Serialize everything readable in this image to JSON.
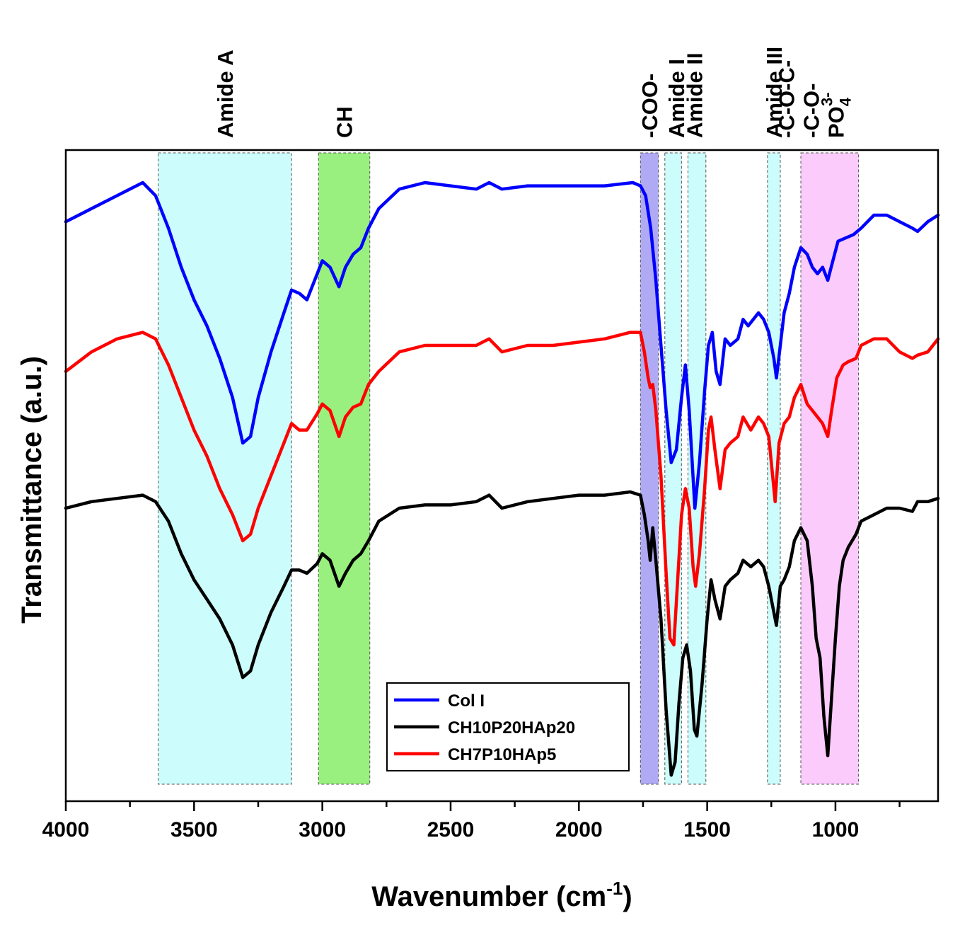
{
  "chart_data": {
    "type": "line",
    "title": "",
    "xlabel": "Wavenumber (cm",
    "xlabel_sup": "-1",
    "xlabel_close": ")",
    "ylabel": "Transmittance (a.u.)",
    "xlim": [
      4000,
      600
    ],
    "ylim": [
      0,
      100
    ],
    "x_ticks": [
      4000,
      3500,
      3000,
      2500,
      2000,
      1500,
      1000
    ],
    "y_ticks_labeled": false,
    "bands": [
      {
        "id": "amide-a",
        "from": 3640,
        "to": 3120,
        "color": "#ccfcfb",
        "label": "Amide A",
        "lines": [
          "Amide A"
        ]
      },
      {
        "id": "ch",
        "from": 3015,
        "to": 2815,
        "color": "#99f07e",
        "label": "CH",
        "lines": [
          "CH"
        ]
      },
      {
        "id": "coo",
        "from": 1760,
        "to": 1690,
        "color": "#b0aaf4",
        "label": "-COO-",
        "lines": [
          "-COO-"
        ]
      },
      {
        "id": "amide-i",
        "from": 1665,
        "to": 1600,
        "color": "#ccfcfb",
        "label": "Amide I",
        "lines": [
          "Amide I"
        ]
      },
      {
        "id": "amide-ii",
        "from": 1575,
        "to": 1505,
        "color": "#ccfcfb",
        "label": "Amide II",
        "lines": [
          "Amide II"
        ]
      },
      {
        "id": "amide-iii",
        "from": 1265,
        "to": 1215,
        "color": "#ccfcfb",
        "label": "Amide III",
        "lines": [
          "Amide III"
        ]
      },
      {
        "id": "ester",
        "from": 1135,
        "to": 910,
        "color": "#fbccfb",
        "label": "-C-O-C- -C-O- PO4 3-",
        "lines": [
          "-C-O-C-",
          "-C-O-"
        ],
        "ion": "PO",
        "ion_sub": "4",
        "ion_sup": "3-"
      }
    ],
    "series": [
      {
        "name": "Col I",
        "color": "#0000ff",
        "points": [
          [
            4000,
            89
          ],
          [
            3900,
            91
          ],
          [
            3800,
            93
          ],
          [
            3700,
            95
          ],
          [
            3650,
            93
          ],
          [
            3600,
            88
          ],
          [
            3550,
            82
          ],
          [
            3500,
            77
          ],
          [
            3450,
            73
          ],
          [
            3400,
            68
          ],
          [
            3350,
            62
          ],
          [
            3310,
            55
          ],
          [
            3280,
            56
          ],
          [
            3250,
            62
          ],
          [
            3200,
            69
          ],
          [
            3150,
            75
          ],
          [
            3120,
            78.5
          ],
          [
            3090,
            78
          ],
          [
            3060,
            77
          ],
          [
            3020,
            81
          ],
          [
            3000,
            83
          ],
          [
            2970,
            82
          ],
          [
            2935,
            79
          ],
          [
            2910,
            82
          ],
          [
            2880,
            84
          ],
          [
            2850,
            85
          ],
          [
            2820,
            88
          ],
          [
            2780,
            91
          ],
          [
            2700,
            94
          ],
          [
            2600,
            95
          ],
          [
            2500,
            94.5
          ],
          [
            2400,
            94
          ],
          [
            2350,
            95
          ],
          [
            2300,
            94
          ],
          [
            2200,
            94.5
          ],
          [
            2100,
            94.5
          ],
          [
            2000,
            94.5
          ],
          [
            1900,
            94.5
          ],
          [
            1790,
            95
          ],
          [
            1760,
            94.5
          ],
          [
            1740,
            93
          ],
          [
            1720,
            88
          ],
          [
            1700,
            80
          ],
          [
            1680,
            70
          ],
          [
            1660,
            60
          ],
          [
            1640,
            52
          ],
          [
            1620,
            54
          ],
          [
            1600,
            62
          ],
          [
            1585,
            67
          ],
          [
            1570,
            60
          ],
          [
            1548,
            45
          ],
          [
            1530,
            52
          ],
          [
            1510,
            63
          ],
          [
            1495,
            70
          ],
          [
            1480,
            72
          ],
          [
            1465,
            66
          ],
          [
            1450,
            64
          ],
          [
            1430,
            71
          ],
          [
            1410,
            70
          ],
          [
            1380,
            71
          ],
          [
            1360,
            74
          ],
          [
            1340,
            73
          ],
          [
            1320,
            74
          ],
          [
            1300,
            75
          ],
          [
            1280,
            74
          ],
          [
            1260,
            72
          ],
          [
            1240,
            68
          ],
          [
            1230,
            65
          ],
          [
            1215,
            70
          ],
          [
            1200,
            75
          ],
          [
            1180,
            78
          ],
          [
            1160,
            82
          ],
          [
            1135,
            85
          ],
          [
            1110,
            84
          ],
          [
            1090,
            82
          ],
          [
            1070,
            81
          ],
          [
            1050,
            82
          ],
          [
            1030,
            80
          ],
          [
            1010,
            83
          ],
          [
            990,
            86
          ],
          [
            960,
            86.5
          ],
          [
            930,
            87
          ],
          [
            900,
            88
          ],
          [
            850,
            90
          ],
          [
            800,
            90
          ],
          [
            750,
            89
          ],
          [
            700,
            88
          ],
          [
            680,
            87.5
          ],
          [
            640,
            89
          ],
          [
            600,
            90
          ]
        ]
      },
      {
        "name": "CH10P20HAp20",
        "color": "#000000",
        "points": [
          [
            4000,
            45
          ],
          [
            3900,
            46
          ],
          [
            3800,
            46.5
          ],
          [
            3700,
            47
          ],
          [
            3650,
            46
          ],
          [
            3600,
            43
          ],
          [
            3550,
            38
          ],
          [
            3500,
            34
          ],
          [
            3450,
            31
          ],
          [
            3400,
            28
          ],
          [
            3350,
            24
          ],
          [
            3310,
            19
          ],
          [
            3280,
            20
          ],
          [
            3250,
            24
          ],
          [
            3200,
            29
          ],
          [
            3150,
            33
          ],
          [
            3120,
            35.5
          ],
          [
            3090,
            35.5
          ],
          [
            3060,
            35
          ],
          [
            3020,
            36.5
          ],
          [
            3000,
            38
          ],
          [
            2970,
            37
          ],
          [
            2935,
            33
          ],
          [
            2910,
            35
          ],
          [
            2880,
            37
          ],
          [
            2850,
            38
          ],
          [
            2820,
            40
          ],
          [
            2780,
            43
          ],
          [
            2700,
            45
          ],
          [
            2600,
            45.5
          ],
          [
            2500,
            45.5
          ],
          [
            2400,
            46
          ],
          [
            2350,
            47
          ],
          [
            2300,
            45
          ],
          [
            2200,
            46
          ],
          [
            2100,
            46.5
          ],
          [
            2000,
            47
          ],
          [
            1900,
            47
          ],
          [
            1800,
            47.5
          ],
          [
            1760,
            47
          ],
          [
            1745,
            44
          ],
          [
            1730,
            40
          ],
          [
            1722,
            37
          ],
          [
            1712,
            42
          ],
          [
            1700,
            37
          ],
          [
            1680,
            28
          ],
          [
            1660,
            14
          ],
          [
            1640,
            4
          ],
          [
            1625,
            6
          ],
          [
            1610,
            15
          ],
          [
            1595,
            22
          ],
          [
            1580,
            24
          ],
          [
            1565,
            20
          ],
          [
            1550,
            11
          ],
          [
            1540,
            10
          ],
          [
            1520,
            18
          ],
          [
            1500,
            28
          ],
          [
            1485,
            34
          ],
          [
            1470,
            31
          ],
          [
            1450,
            28
          ],
          [
            1430,
            33
          ],
          [
            1410,
            34
          ],
          [
            1380,
            35
          ],
          [
            1360,
            37
          ],
          [
            1330,
            36
          ],
          [
            1300,
            37
          ],
          [
            1280,
            36
          ],
          [
            1260,
            33
          ],
          [
            1240,
            29
          ],
          [
            1230,
            27
          ],
          [
            1215,
            33
          ],
          [
            1200,
            34
          ],
          [
            1180,
            36
          ],
          [
            1160,
            40
          ],
          [
            1135,
            42
          ],
          [
            1110,
            40
          ],
          [
            1090,
            33
          ],
          [
            1075,
            25
          ],
          [
            1060,
            22
          ],
          [
            1045,
            13
          ],
          [
            1030,
            7
          ],
          [
            1015,
            16
          ],
          [
            1000,
            25
          ],
          [
            985,
            33
          ],
          [
            970,
            37
          ],
          [
            950,
            39
          ],
          [
            920,
            41
          ],
          [
            900,
            43
          ],
          [
            850,
            44
          ],
          [
            800,
            45
          ],
          [
            750,
            45
          ],
          [
            700,
            44.5
          ],
          [
            680,
            46
          ],
          [
            640,
            46
          ],
          [
            600,
            46.5
          ]
        ]
      },
      {
        "name": "CH7P10HAp5",
        "color": "#ff0000",
        "points": [
          [
            4000,
            66
          ],
          [
            3900,
            69
          ],
          [
            3800,
            71
          ],
          [
            3700,
            72
          ],
          [
            3650,
            71
          ],
          [
            3600,
            67
          ],
          [
            3550,
            62
          ],
          [
            3500,
            57
          ],
          [
            3450,
            53
          ],
          [
            3400,
            48
          ],
          [
            3350,
            44
          ],
          [
            3310,
            40
          ],
          [
            3280,
            41
          ],
          [
            3250,
            45
          ],
          [
            3200,
            50
          ],
          [
            3150,
            55
          ],
          [
            3120,
            58
          ],
          [
            3090,
            57
          ],
          [
            3060,
            57
          ],
          [
            3020,
            59.5
          ],
          [
            3000,
            61
          ],
          [
            2970,
            60
          ],
          [
            2935,
            56
          ],
          [
            2910,
            59
          ],
          [
            2880,
            60.5
          ],
          [
            2850,
            61
          ],
          [
            2820,
            64
          ],
          [
            2780,
            66
          ],
          [
            2700,
            69
          ],
          [
            2600,
            70
          ],
          [
            2500,
            70
          ],
          [
            2400,
            70
          ],
          [
            2350,
            71
          ],
          [
            2300,
            69
          ],
          [
            2200,
            70
          ],
          [
            2100,
            70
          ],
          [
            2000,
            70.5
          ],
          [
            1900,
            71
          ],
          [
            1800,
            72
          ],
          [
            1760,
            72
          ],
          [
            1745,
            69
          ],
          [
            1730,
            65
          ],
          [
            1722,
            63.5
          ],
          [
            1712,
            64
          ],
          [
            1700,
            60
          ],
          [
            1680,
            50
          ],
          [
            1660,
            35
          ],
          [
            1645,
            25
          ],
          [
            1630,
            24
          ],
          [
            1615,
            34
          ],
          [
            1600,
            44
          ],
          [
            1585,
            48
          ],
          [
            1570,
            45
          ],
          [
            1555,
            36
          ],
          [
            1545,
            33
          ],
          [
            1530,
            38
          ],
          [
            1510,
            48
          ],
          [
            1495,
            57
          ],
          [
            1485,
            59
          ],
          [
            1470,
            54
          ],
          [
            1450,
            48
          ],
          [
            1430,
            54
          ],
          [
            1410,
            55
          ],
          [
            1380,
            56
          ],
          [
            1360,
            59
          ],
          [
            1330,
            57
          ],
          [
            1300,
            59
          ],
          [
            1280,
            58
          ],
          [
            1260,
            56
          ],
          [
            1245,
            50
          ],
          [
            1235,
            46
          ],
          [
            1220,
            55
          ],
          [
            1200,
            58
          ],
          [
            1180,
            59
          ],
          [
            1160,
            62
          ],
          [
            1135,
            64
          ],
          [
            1110,
            61
          ],
          [
            1090,
            60
          ],
          [
            1070,
            59
          ],
          [
            1050,
            58
          ],
          [
            1030,
            56
          ],
          [
            1015,
            60
          ],
          [
            995,
            65
          ],
          [
            970,
            67
          ],
          [
            950,
            67.5
          ],
          [
            920,
            68
          ],
          [
            900,
            70
          ],
          [
            850,
            71
          ],
          [
            800,
            71
          ],
          [
            750,
            69
          ],
          [
            700,
            68
          ],
          [
            680,
            68.5
          ],
          [
            640,
            69
          ],
          [
            600,
            71
          ]
        ]
      }
    ],
    "legend": {
      "placement": "bottom-center",
      "order": [
        "Col I",
        "CH10P20HAp20",
        "CH7P10HAp5"
      ]
    }
  }
}
